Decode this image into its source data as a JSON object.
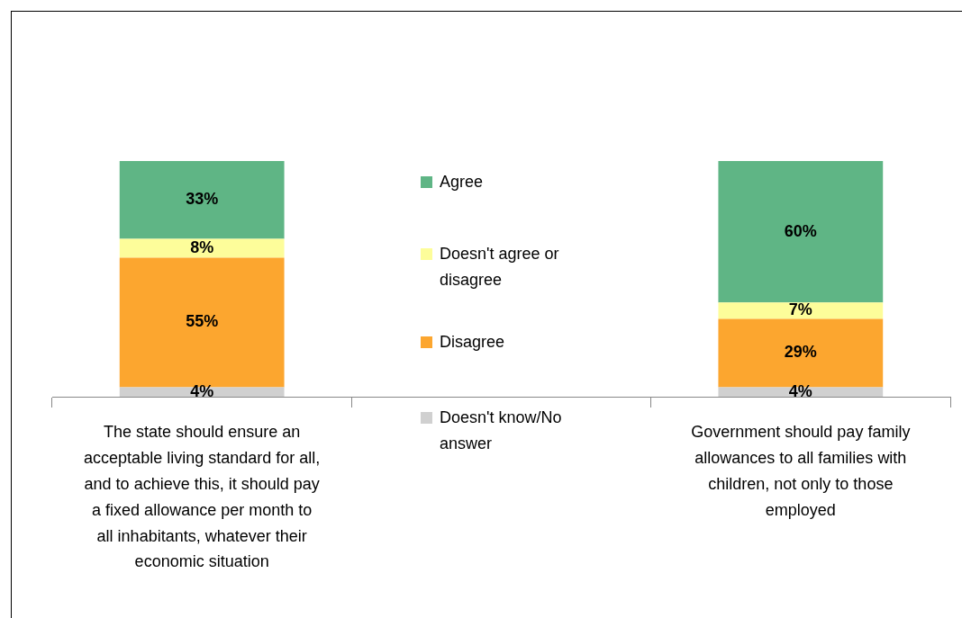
{
  "chart_data": {
    "type": "bar",
    "stacked": true,
    "categories": [
      "The state should ensure an acceptable living standard for all, and to achieve this, it should pay a fixed allowance per month to all inhabitants, whatever their economic situation",
      null,
      "Government should pay family allowances to all families with children, not only to those employed"
    ],
    "series": [
      {
        "name": "Doesn't know/No answer",
        "color": "#d0d0d0",
        "values": [
          4,
          null,
          4
        ],
        "value_labels": [
          "4%",
          null,
          "4%"
        ]
      },
      {
        "name": "Disagree",
        "color": "#fca62f",
        "values": [
          55,
          null,
          29
        ],
        "value_labels": [
          "55%",
          null,
          "29%"
        ]
      },
      {
        "name": "Doesn't agree or disagree",
        "color": "#fdfd9a",
        "values": [
          8,
          null,
          7
        ],
        "value_labels": [
          "8%",
          null,
          "7%"
        ]
      },
      {
        "name": "Agree",
        "color": "#5fb585",
        "values": [
          33,
          null,
          60
        ],
        "value_labels": [
          "33%",
          null,
          "60%"
        ]
      }
    ],
    "tick_labels": "x",
    "legend": "center"
  }
}
